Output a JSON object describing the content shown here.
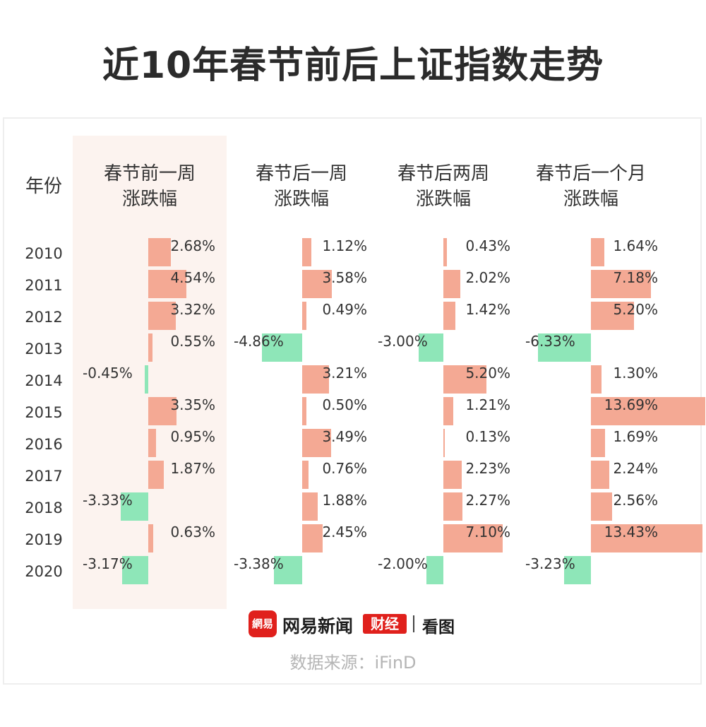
{
  "title": "近10年春节前后上证指数走势",
  "headers": {
    "year": "年份",
    "columns": [
      "春节前一周\n涨跌幅",
      "春节后一周\n涨跌幅",
      "春节后两周\n涨跌幅",
      "春节后一个月\n涨跌幅"
    ]
  },
  "footer": {
    "logo_badge": "網易",
    "logo_name": "网易新闻",
    "logo_tag": "财经",
    "logo_sub": "看图",
    "source": "数据来源：iFinD"
  },
  "colors": {
    "positive": "#f4a994",
    "negative": "#8ee6b8",
    "highlight": "#fcf3ef"
  },
  "chart_data": {
    "type": "bar",
    "title": "近10年春节前后上证指数走势",
    "categories": [
      "2010",
      "2011",
      "2012",
      "2013",
      "2014",
      "2015",
      "2016",
      "2017",
      "2018",
      "2019",
      "2020"
    ],
    "unit": "%",
    "series": [
      {
        "name": "春节前一周涨跌幅",
        "values": [
          2.68,
          4.54,
          3.32,
          0.55,
          -0.45,
          3.35,
          0.95,
          1.87,
          -3.33,
          0.63,
          -3.17
        ],
        "labels": [
          "2.68%",
          "4.54%",
          "3.32%",
          "0.55%",
          "-0.45%",
          "3.35%",
          "0.95%",
          "1.87%",
          "-3.33%",
          "0.63%",
          "-3.17%"
        ]
      },
      {
        "name": "春节后一周涨跌幅",
        "values": [
          1.12,
          3.58,
          0.49,
          -4.86,
          3.21,
          0.5,
          3.49,
          0.76,
          1.88,
          2.45,
          -3.38
        ],
        "labels": [
          "1.12%",
          "3.58%",
          "0.49%",
          "-4.86%",
          "3.21%",
          "0.50%",
          "3.49%",
          "0.76%",
          "1.88%",
          "2.45%",
          "-3.38%"
        ]
      },
      {
        "name": "春节后两周涨跌幅",
        "values": [
          0.43,
          2.02,
          1.42,
          -3.0,
          5.2,
          1.21,
          0.13,
          2.23,
          2.27,
          7.1,
          -2.0
        ],
        "labels": [
          "0.43%",
          "2.02%",
          "1.42%",
          "-3.00%",
          "5.20%",
          "1.21%",
          "0.13%",
          "2.23%",
          "2.27%",
          "7.10%",
          "-2.00%"
        ]
      },
      {
        "name": "春节后一个月涨跌幅",
        "values": [
          1.64,
          7.18,
          5.2,
          -6.33,
          1.3,
          13.69,
          1.69,
          2.24,
          2.56,
          13.43,
          -3.23
        ],
        "labels": [
          "1.64%",
          "7.18%",
          "5.20%",
          "-6.33%",
          "1.30%",
          "13.69%",
          "1.69%",
          "2.24%",
          "2.56%",
          "13.43%",
          "-3.23%"
        ]
      }
    ]
  }
}
